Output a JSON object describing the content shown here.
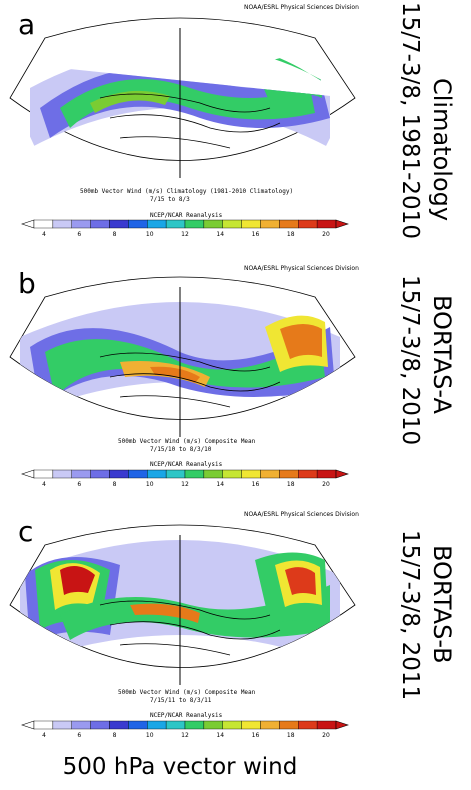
{
  "panels": [
    {
      "letter": "a",
      "credit": "NOAA/ESRL Physical Sciences Division",
      "caption_line1": "500mb Vector Wind (m/s) Climatology (1981-2010 Climatology)",
      "caption_line2": "7/15  to 8/3",
      "caption_line3": "NCEP/NCAR Reanalysis",
      "side_label": "Climatology",
      "side_dates": "15/7-3/8, 1981-2010"
    },
    {
      "letter": "b",
      "credit": "NOAA/ESRL Physical Sciences Division",
      "caption_line1": "500mb Vector Wind (m/s) Composite Mean",
      "caption_line2": "7/15/10  to 8/3/10",
      "caption_line3": "NCEP/NCAR Reanalysis",
      "side_label": "BORTAS-A",
      "side_dates": "15/7-3/8, 2010"
    },
    {
      "letter": "c",
      "credit": "NOAA/ESRL Physical Sciences Division",
      "caption_line1": "500mb Vector Wind (m/s) Composite Mean",
      "caption_line2": "7/15/11  to 8/3/11",
      "caption_line3": "NCEP/NCAR Reanalysis",
      "side_label": "BORTAS-B",
      "side_dates": "15/7-3/8, 2011"
    }
  ],
  "colorbar": {
    "ticks": [
      "4",
      "6",
      "8",
      "10",
      "12",
      "14",
      "16",
      "18",
      "20"
    ],
    "colors": [
      "#ffffff",
      "#c9c9f5",
      "#9a9aef",
      "#6e6ee6",
      "#3a3acf",
      "#1f64e6",
      "#1aa6e6",
      "#2ec6c6",
      "#33cc66",
      "#7acc33",
      "#c6e633",
      "#f0e633",
      "#f0b033",
      "#e67a1a",
      "#dd3a1a",
      "#c81414"
    ]
  },
  "footer": "500 hPa vector wind",
  "palette": {
    "ocean": "#ffffff",
    "low": "#c9c9f5",
    "mid": "#6e6ee6",
    "jet_green": "#33cc66",
    "jet_yellow": "#f0e633",
    "jet_orange": "#e67a1a",
    "jet_red": "#c81414"
  }
}
